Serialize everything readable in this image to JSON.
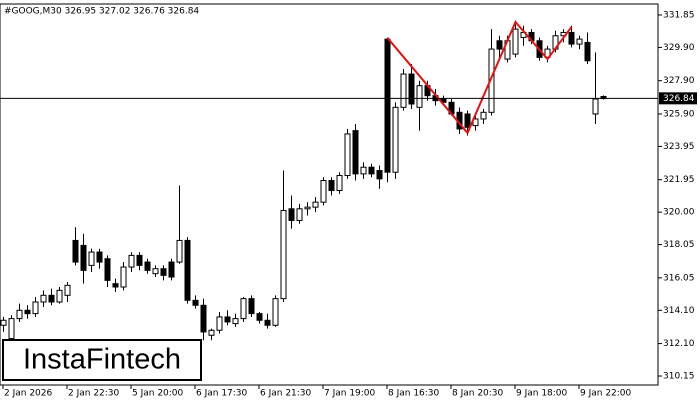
{
  "chart_data": {
    "type": "candlestick",
    "title": "#GOOG,M30  326.95 327.02 326.76 326.84",
    "logo": "InstaFintech",
    "categories": [
      "2 Jan 2026",
      null,
      null,
      null,
      null,
      null,
      null,
      null,
      "2 Jan 22:30",
      null,
      null,
      null,
      null,
      null,
      null,
      null,
      "5 Jan 20:00",
      null,
      null,
      null,
      null,
      null,
      null,
      null,
      "6 Jan 17:30",
      null,
      null,
      null,
      null,
      null,
      null,
      null,
      "6 Jan 21:30",
      null,
      null,
      null,
      null,
      null,
      null,
      null,
      "7 Jan 19:00",
      null,
      null,
      null,
      null,
      null,
      null,
      null,
      "8 Jan 16:30",
      null,
      null,
      null,
      null,
      null,
      null,
      null,
      "8 Jan 20:30",
      null,
      null,
      null,
      null,
      null,
      null,
      null,
      "9 Jan 18:00",
      null,
      null,
      null,
      null,
      null,
      null,
      null,
      "9 Jan 22:00",
      null,
      null,
      null
    ],
    "open": [
      313.2,
      312.4,
      313.6,
      314.1,
      313.9,
      314.6,
      315.0,
      314.6,
      315.0,
      318.3,
      318.0,
      316.8,
      317.6,
      317.2,
      315.7,
      315.5,
      316.7,
      317.4,
      317.0,
      316.3,
      316.6,
      317.0,
      317.0,
      318.3,
      314.7,
      314.4,
      312.6,
      312.9,
      313.7,
      313.3,
      313.6,
      314.8,
      313.9,
      313.5,
      313.2,
      314.8,
      320.2,
      319.5,
      320.2,
      320.3,
      320.6,
      321.9,
      321.3,
      322.2,
      324.9,
      322.3,
      322.7,
      322.5,
      330.4,
      322.4,
      326.3,
      328.3,
      326.3,
      327.6,
      327.0,
      326.8,
      326.6,
      326.0,
      325.9,
      325.2,
      325.6,
      326.0,
      330.3,
      329.2,
      329.5,
      330.5,
      330.8,
      330.3,
      329.3,
      329.8,
      330.6,
      330.8,
      330.1,
      330.2,
      325.9,
      326.95
    ],
    "high": [
      313.7,
      313.8,
      314.5,
      314.4,
      314.9,
      315.3,
      315.4,
      315.5,
      315.8,
      319.1,
      318.7,
      317.8,
      317.8,
      317.4,
      316.0,
      317.0,
      317.6,
      317.6,
      317.2,
      316.8,
      316.8,
      317.2,
      321.6,
      318.5,
      315.0,
      314.8,
      313.0,
      314.0,
      314.1,
      313.9,
      314.9,
      315.0,
      314.0,
      313.9,
      315.0,
      322.5,
      321.0,
      320.5,
      320.6,
      320.9,
      322.1,
      322.1,
      322.4,
      325.0,
      325.3,
      323.0,
      322.9,
      322.8,
      330.5,
      326.6,
      328.6,
      328.9,
      327.9,
      327.9,
      327.4,
      327.0,
      326.8,
      326.3,
      326.1,
      325.8,
      326.2,
      331.0,
      330.6,
      330.6,
      331.5,
      331.2,
      331.0,
      330.5,
      330.0,
      330.9,
      331.0,
      331.2,
      330.6,
      330.8,
      329.6,
      327.02
    ],
    "low": [
      312.8,
      312.2,
      313.4,
      313.6,
      313.7,
      314.3,
      314.4,
      314.5,
      314.6,
      316.8,
      315.7,
      316.4,
      316.6,
      315.5,
      315.2,
      315.3,
      316.4,
      316.5,
      316.3,
      316.1,
      315.9,
      315.9,
      316.9,
      314.5,
      314.2,
      312.3,
      312.3,
      312.7,
      313.2,
      313.1,
      313.4,
      313.7,
      313.3,
      313.0,
      313.1,
      314.6,
      319.0,
      319.3,
      319.8,
      320.0,
      320.4,
      321.0,
      321.1,
      322.0,
      321.9,
      322.0,
      322.1,
      321.4,
      321.8,
      322.0,
      326.1,
      326.2,
      324.9,
      326.7,
      326.4,
      326.4,
      325.8,
      324.7,
      324.6,
      324.9,
      325.3,
      325.8,
      329.2,
      329.0,
      329.3,
      330.0,
      330.1,
      329.1,
      329.0,
      329.6,
      330.2,
      329.9,
      329.8,
      328.9,
      325.3,
      326.76
    ],
    "close": [
      313.5,
      313.6,
      314.1,
      313.9,
      314.6,
      315.0,
      314.6,
      315.3,
      315.6,
      317.0,
      316.5,
      317.6,
      317.0,
      315.9,
      315.5,
      316.7,
      317.4,
      316.8,
      316.5,
      316.6,
      316.2,
      316.1,
      318.3,
      314.7,
      314.4,
      312.8,
      312.9,
      313.7,
      313.4,
      313.6,
      314.8,
      313.9,
      313.5,
      313.2,
      314.8,
      320.1,
      319.5,
      320.2,
      320.3,
      320.6,
      321.9,
      321.3,
      322.2,
      324.7,
      322.3,
      322.7,
      322.3,
      322.0,
      322.4,
      326.3,
      328.3,
      326.5,
      327.6,
      327.0,
      326.7,
      326.6,
      325.9,
      325.0,
      325.1,
      325.6,
      326.0,
      329.8,
      329.8,
      330.3,
      331.0,
      330.8,
      330.3,
      329.3,
      329.8,
      330.6,
      330.8,
      330.1,
      330.4,
      329.1,
      326.8,
      326.84
    ],
    "up_color": "#ffffff",
    "down_color": "#000000",
    "current_price": 326.84,
    "pattern": {
      "color": "#e8110f",
      "x": [
        48,
        58,
        64,
        68,
        71
      ],
      "y": [
        330.47,
        324.76,
        331.43,
        329.2,
        331.13
      ]
    },
    "ylim": [
      309.61,
      332.51
    ],
    "yticks": [
      {
        "value": 310.15,
        "label": "310.15"
      },
      {
        "value": 312.1,
        "label": "312.10"
      },
      {
        "value": 314.1,
        "label": "314.10"
      },
      316.05,
      318.05,
      {
        "value": 320,
        "label": "320.00"
      },
      321.95,
      323.95,
      {
        "value": 325.9,
        "label": "325.90"
      },
      {
        "value": 327.9,
        "label": "327.90"
      },
      {
        "value": 329.9,
        "label": "329.90"
      },
      331.85
    ]
  }
}
